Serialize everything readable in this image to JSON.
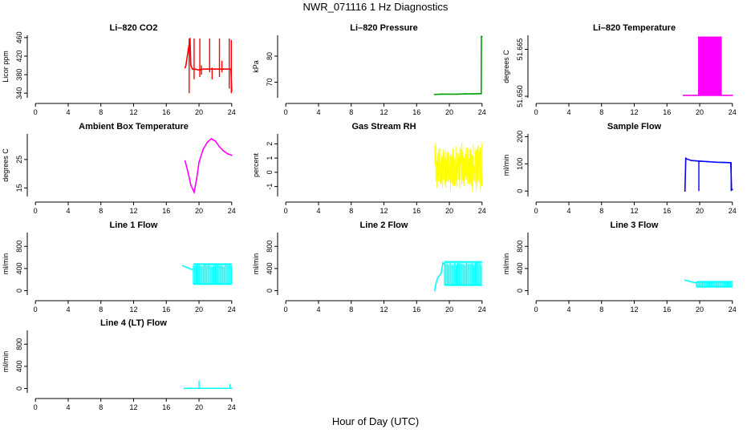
{
  "title": "NWR_071116  1 Hz Diagnostics",
  "xlabel": "Hour of Day (UTC)",
  "chart_data": [
    {
      "type": "line",
      "title": "Li–820 CO2",
      "ylabel": "Licor ppm",
      "color": "#ff0000",
      "xlim": [
        -1,
        25
      ],
      "xticks": [
        0,
        4,
        8,
        12,
        16,
        20,
        24
      ],
      "ylim": [
        330,
        465
      ],
      "yticks": [
        340,
        380,
        420,
        460
      ],
      "x": [
        18.3,
        18.4,
        18.9,
        19.0,
        19.2,
        19.5,
        20.0,
        20.5,
        21.0,
        21.5,
        22.0,
        22.5,
        23.0,
        23.5,
        23.9,
        24.0
      ],
      "y": [
        395,
        400,
        458,
        400,
        392,
        392,
        390,
        392,
        392,
        392,
        392,
        392,
        392,
        392,
        392,
        345
      ],
      "spikes": [
        [
          18.8,
          340,
          458
        ],
        [
          19.4,
          370,
          458
        ],
        [
          20.1,
          375,
          458
        ],
        [
          20.3,
          380,
          400
        ],
        [
          21.3,
          385,
          458
        ],
        [
          21.6,
          370,
          395
        ],
        [
          22.5,
          375,
          458
        ],
        [
          22.8,
          385,
          410
        ],
        [
          23.7,
          350,
          458
        ],
        [
          23.95,
          340,
          455
        ]
      ]
    },
    {
      "type": "line",
      "title": "Li–820 Pressure",
      "ylabel": "kPa",
      "color": "#00a000",
      "xlim": [
        -1,
        25
      ],
      "xticks": [
        0,
        4,
        8,
        12,
        16,
        20,
        24
      ],
      "ylim": [
        64,
        88
      ],
      "yticks": [
        70,
        80
      ],
      "x": [
        18.2,
        19,
        20,
        21,
        22,
        23,
        23.8,
        23.9,
        23.92,
        24.0
      ],
      "y": [
        65.3,
        65.4,
        65.4,
        65.4,
        65.5,
        65.5,
        65.6,
        65.6,
        87.5,
        87.5
      ],
      "spikes": []
    },
    {
      "type": "band",
      "title": "Li–820 Temperature",
      "ylabel": "degrees C",
      "color": "#ff00ff",
      "xlim": [
        -1,
        25
      ],
      "xticks": [
        0,
        4,
        8,
        12,
        16,
        20,
        24
      ],
      "ylim": [
        51.6495,
        51.6695
      ],
      "yticks": [
        51.65,
        51.665
      ],
      "yticklabels": [
        "51.650",
        "51.665"
      ],
      "x": [
        18.0,
        24.0
      ],
      "y": [
        51.6503,
        51.6503
      ],
      "band": [
        19.8,
        22.7,
        51.6503,
        51.6691
      ]
    },
    {
      "type": "line",
      "title": "Ambient Box Temperature",
      "ylabel": "degrees C",
      "color": "#ff00ff",
      "xlim": [
        -1,
        25
      ],
      "xticks": [
        0,
        4,
        8,
        12,
        16,
        20,
        24
      ],
      "ylim": [
        12,
        34
      ],
      "yticks": [
        15,
        25
      ],
      "x": [
        18.3,
        18.7,
        19.0,
        19.4,
        19.7,
        20.0,
        20.5,
        21.0,
        21.5,
        22.0,
        22.5,
        23.0,
        23.5,
        24.0
      ],
      "y": [
        24.5,
        20,
        16,
        13.5,
        18,
        24,
        28.5,
        31,
        32.3,
        31.5,
        29.5,
        28,
        27,
        26.5
      ],
      "spikes": []
    },
    {
      "type": "noise",
      "title": "Gas Stream RH",
      "ylabel": "percent",
      "color": "#ffff00",
      "xlim": [
        -1,
        25
      ],
      "xticks": [
        0,
        4,
        8,
        12,
        16,
        20,
        24
      ],
      "ylim": [
        -1.7,
        2.7
      ],
      "yticks": [
        -1,
        0,
        1,
        2
      ],
      "noise_range": [
        18.2,
        24.0,
        -1.4,
        2.4
      ],
      "noise_mean": 0.3,
      "x": [],
      "y": [],
      "spikes": []
    },
    {
      "type": "line",
      "title": "Sample Flow",
      "ylabel": "ml/min",
      "color": "#0000ff",
      "xlim": [
        -1,
        25
      ],
      "xticks": [
        0,
        4,
        8,
        12,
        16,
        20,
        24
      ],
      "ylim": [
        -20,
        210
      ],
      "yticks": [
        0,
        100,
        200
      ],
      "x": [
        18.2,
        18.3,
        18.4,
        19,
        20,
        21,
        22,
        23,
        23.8,
        23.9,
        24.0
      ],
      "y": [
        0,
        120,
        118,
        112,
        110,
        108,
        106,
        105,
        104,
        5,
        5
      ],
      "spikes": [
        [
          19.9,
          0,
          112
        ],
        [
          23.85,
          0,
          104
        ]
      ]
    },
    {
      "type": "bars",
      "title": "Line 1 Flow",
      "ylabel": "ml/min",
      "color": "#00ffff",
      "xlim": [
        -1,
        25
      ],
      "xticks": [
        0,
        4,
        8,
        12,
        16,
        20,
        24
      ],
      "ylim": [
        -80,
        1050
      ],
      "yticks": [
        0,
        400,
        800
      ],
      "x": [
        18.0,
        18.5,
        19.0,
        19.3
      ],
      "y": [
        450,
        420,
        390,
        380
      ],
      "bars_range": [
        19.3,
        24.0,
        120,
        480
      ],
      "spikes": []
    },
    {
      "type": "bars",
      "title": "Line 2 Flow",
      "ylabel": "ml/min",
      "color": "#00ffff",
      "xlim": [
        -1,
        25
      ],
      "xticks": [
        0,
        4,
        8,
        12,
        16,
        20,
        24
      ],
      "ylim": [
        -80,
        1050
      ],
      "yticks": [
        0,
        400,
        800
      ],
      "x": [
        18.2,
        18.4,
        18.6,
        19.0,
        19.2,
        19.4
      ],
      "y": [
        0,
        150,
        240,
        310,
        500,
        480
      ],
      "bars_range": [
        19.4,
        24.0,
        100,
        520
      ],
      "spikes": []
    },
    {
      "type": "bars",
      "title": "Line 3 Flow",
      "ylabel": "ml/min",
      "color": "#00ffff",
      "xlim": [
        -1,
        25
      ],
      "xticks": [
        0,
        4,
        8,
        12,
        16,
        20,
        24
      ],
      "ylim": [
        -80,
        1050
      ],
      "yticks": [
        0,
        400,
        800
      ],
      "x": [
        18.2,
        18.7,
        19.2,
        19.6
      ],
      "y": [
        190,
        170,
        150,
        140
      ],
      "bars_range": [
        19.6,
        24.0,
        70,
        160
      ],
      "spikes": []
    },
    {
      "type": "line",
      "title": "Line 4 (LT) Flow",
      "ylabel": "ml/min",
      "color": "#00ffff",
      "xlim": [
        -1,
        25
      ],
      "xticks": [
        0,
        4,
        8,
        12,
        16,
        20,
        24
      ],
      "ylim": [
        -80,
        1050
      ],
      "yticks": [
        0,
        400,
        800
      ],
      "x": [
        18.2,
        19,
        20,
        21,
        22,
        23,
        24
      ],
      "y": [
        2,
        2,
        2,
        3,
        3,
        3,
        3
      ],
      "spikes": [
        [
          20.0,
          0,
          140
        ],
        [
          23.8,
          0,
          80
        ]
      ]
    }
  ]
}
